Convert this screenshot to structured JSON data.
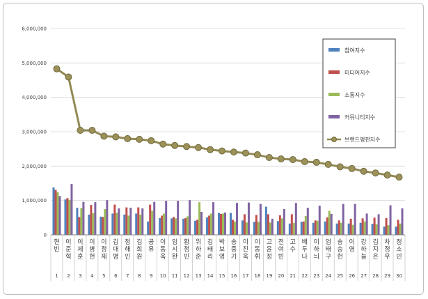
{
  "chart_data": {
    "type": "bar",
    "categories": [
      "현빈",
      "이준혁",
      "이제훈",
      "이병헌",
      "이정재",
      "김대명",
      "정해인",
      "김희원",
      "공유",
      "이동욱",
      "임시완",
      "황정민",
      "위하준",
      "김태리",
      "박보영",
      "송중기",
      "이진욱",
      "이동휘",
      "고윤정",
      "전여빈",
      "고수",
      "배두나",
      "이하늬",
      "엄태구",
      "송승헌",
      "이영",
      "강하늘",
      "김지은",
      "차정우",
      "정소민"
    ],
    "rank_labels": [
      "1",
      "2",
      "3",
      "4",
      "5",
      "6",
      "7",
      "8",
      "9",
      "10",
      "11",
      "12",
      "13",
      "14",
      "15",
      "16",
      "17",
      "18",
      "19",
      "20",
      "21",
      "22",
      "23",
      "24",
      "25",
      "26",
      "27",
      "28",
      "29",
      "30"
    ],
    "ylim": [
      0,
      6000000
    ],
    "yticks": [
      0,
      1000000,
      2000000,
      3000000,
      4000000,
      5000000,
      6000000
    ],
    "ytick_labels": [
      "0",
      "1,000,000",
      "2,000,000",
      "3,000,000",
      "4,000,000",
      "5,000,000",
      "6,000,000"
    ],
    "grid": true,
    "legend_position": "top-right",
    "series": [
      {
        "name": "참여지수",
        "type": "bar",
        "color": "#4f81bd",
        "values": [
          1380000,
          1030000,
          790000,
          590000,
          530000,
          620000,
          590000,
          620000,
          390000,
          490000,
          480000,
          470000,
          410000,
          510000,
          640000,
          640000,
          420000,
          380000,
          820000,
          400000,
          330000,
          380000,
          350000,
          390000,
          330000,
          330000,
          350000,
          320000,
          240000,
          240000
        ]
      },
      {
        "name": "미디어지수",
        "type": "bar",
        "color": "#c0504d",
        "values": [
          1310000,
          1070000,
          520000,
          870000,
          520000,
          880000,
          800000,
          800000,
          880000,
          560000,
          520000,
          490000,
          440000,
          560000,
          610000,
          440000,
          600000,
          580000,
          600000,
          570000,
          600000,
          390000,
          420000,
          510000,
          420000,
          470000,
          480000,
          500000,
          490000,
          440000
        ]
      },
      {
        "name": "소통지수",
        "type": "bar",
        "color": "#9bbb59",
        "values": [
          1240000,
          1020000,
          780000,
          630000,
          750000,
          640000,
          560000,
          590000,
          700000,
          620000,
          480000,
          540000,
          950000,
          620000,
          620000,
          390000,
          360000,
          380000,
          360000,
          480000,
          350000,
          550000,
          410000,
          700000,
          350000,
          290000,
          390000,
          310000,
          280000,
          330000
        ]
      },
      {
        "name": "커뮤니티지수",
        "type": "bar",
        "color": "#8064a2",
        "values": [
          1130000,
          1480000,
          960000,
          950000,
          1010000,
          770000,
          790000,
          770000,
          960000,
          990000,
          990000,
          1010000,
          670000,
          950000,
          650000,
          930000,
          940000,
          900000,
          470000,
          750000,
          930000,
          790000,
          850000,
          610000,
          900000,
          900000,
          620000,
          600000,
          860000,
          770000
        ]
      },
      {
        "name": "브랜드평판지수",
        "type": "line",
        "color": "#938953",
        "values": [
          4830000,
          4590000,
          3040000,
          3040000,
          2870000,
          2850000,
          2800000,
          2780000,
          2740000,
          2640000,
          2600000,
          2570000,
          2540000,
          2480000,
          2440000,
          2410000,
          2380000,
          2330000,
          2250000,
          2210000,
          2190000,
          2130000,
          2110000,
          2050000,
          1980000,
          1930000,
          1850000,
          1800000,
          1740000,
          1680000
        ]
      }
    ]
  }
}
